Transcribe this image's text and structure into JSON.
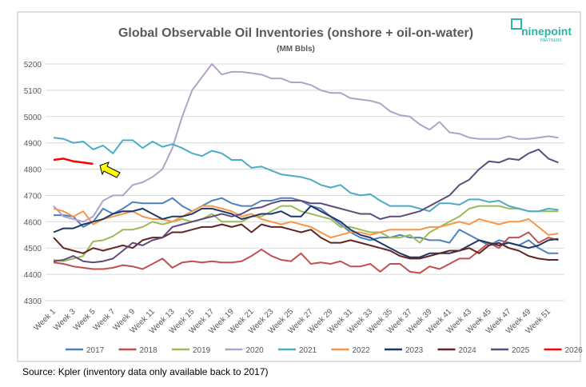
{
  "chart_data": {
    "type": "line",
    "title": "Global Observable Oil Inventories (onshore + oil-on-water)",
    "subtitle": "(MM Bbls)",
    "source": "Source: Kpler (inventory data only available back to 2017)",
    "logo": "ninepoint",
    "logo_sub": "PARTNERS",
    "categories": [
      "Week 1",
      null,
      "Week 3",
      null,
      "Week 5",
      null,
      "Week 7",
      null,
      "Week 9",
      null,
      "Week 11",
      null,
      "Week 13",
      null,
      "Week 15",
      null,
      "Week 17",
      null,
      "Week 19",
      null,
      "Week 21",
      null,
      "Week 23",
      null,
      "Week 25",
      null,
      "Week 27",
      null,
      "Week 29",
      null,
      "Week 31",
      null,
      "Week 33",
      null,
      "Week 35",
      null,
      "Week 37",
      null,
      "Week 39",
      null,
      "Week 41",
      null,
      "Week 43",
      null,
      "Week 45",
      null,
      "Week 47",
      null,
      "Week 49",
      null,
      "Week 51",
      null
    ],
    "ylim": [
      4300,
      5200
    ],
    "yticks": [
      4300,
      4400,
      4500,
      4600,
      4700,
      4800,
      4900,
      5000,
      5100,
      5200
    ],
    "grid": true,
    "legend": "bottom",
    "series": [
      {
        "name": "2017",
        "color": "#4f81bd",
        "values": [
          4625,
          4625,
          4620,
          4580,
          4600,
          4650,
          4630,
          4650,
          4675,
          4670,
          4670,
          4670,
          4690,
          4660,
          4640,
          4660,
          4680,
          4690,
          4670,
          4660,
          4660,
          4680,
          4680,
          4690,
          4690,
          4680,
          4660,
          4650,
          4620,
          4590,
          4560,
          4540,
          4530,
          4540,
          4540,
          4550,
          4540,
          4540,
          4530,
          4530,
          4520,
          4570,
          4550,
          4530,
          4510,
          4530,
          4520,
          4510,
          4530,
          4500,
          4480,
          4480
        ]
      },
      {
        "name": "2018",
        "color": "#c0504d",
        "values": [
          4445,
          4440,
          4430,
          4425,
          4420,
          4420,
          4425,
          4435,
          4430,
          4420,
          4440,
          4460,
          4425,
          4445,
          4450,
          4445,
          4450,
          4445,
          4445,
          4450,
          4470,
          4495,
          4470,
          4455,
          4450,
          4480,
          4440,
          4445,
          4440,
          4450,
          4430,
          4430,
          4440,
          4410,
          4440,
          4440,
          4410,
          4405,
          4430,
          4420,
          4440,
          4460,
          4460,
          4490,
          4520,
          4500,
          4540,
          4540,
          4560,
          4520,
          4540,
          4530
        ]
      },
      {
        "name": "2019",
        "color": "#9bbb59",
        "values": [
          4455,
          4450,
          4460,
          4470,
          4525,
          4530,
          4545,
          4570,
          4570,
          4580,
          4600,
          4590,
          4600,
          4610,
          4600,
          4610,
          4630,
          4600,
          4600,
          4600,
          4620,
          4620,
          4640,
          4660,
          4660,
          4640,
          4630,
          4620,
          4610,
          4580,
          4580,
          4570,
          4560,
          4560,
          4540,
          4540,
          4550,
          4520,
          4560,
          4580,
          4600,
          4620,
          4650,
          4660,
          4660,
          4660,
          4650,
          4650,
          4640,
          4640,
          4640,
          4640
        ]
      },
      {
        "name": "2020",
        "color": "#b3a2c7",
        "values": [
          4660,
          4620,
          4610,
          4600,
          4620,
          4680,
          4700,
          4700,
          4740,
          4750,
          4770,
          4800,
          4880,
          5000,
          5100,
          5150,
          5200,
          5160,
          5170,
          5170,
          5165,
          5160,
          5145,
          5145,
          5130,
          5130,
          5120,
          5100,
          5090,
          5090,
          5070,
          5065,
          5060,
          5050,
          5020,
          5005,
          5000,
          4970,
          4950,
          4980,
          4940,
          4935,
          4920,
          4915,
          4915,
          4915,
          4925,
          4915,
          4915,
          4920,
          4925,
          4920
        ]
      },
      {
        "name": "2021",
        "color": "#4bacc6",
        "values": [
          4920,
          4915,
          4900,
          4905,
          4875,
          4890,
          4860,
          4910,
          4910,
          4880,
          4905,
          4885,
          4895,
          4880,
          4860,
          4850,
          4870,
          4860,
          4835,
          4835,
          4805,
          4810,
          4795,
          4780,
          4775,
          4770,
          4760,
          4740,
          4730,
          4740,
          4710,
          4700,
          4705,
          4680,
          4660,
          4660,
          4660,
          4650,
          4640,
          4670,
          4670,
          4665,
          4685,
          4685,
          4675,
          4680,
          4660,
          4650,
          4640,
          4640,
          4650,
          4645
        ]
      },
      {
        "name": "2022",
        "color": "#f79646",
        "values": [
          4650,
          4640,
          4620,
          4640,
          4590,
          4610,
          4620,
          4630,
          4640,
          4620,
          4610,
          4610,
          4600,
          4620,
          4640,
          4660,
          4660,
          4650,
          4640,
          4620,
          4630,
          4610,
          4600,
          4590,
          4600,
          4590,
          4580,
          4560,
          4540,
          4550,
          4560,
          4560,
          4550,
          4560,
          4570,
          4570,
          4570,
          4570,
          4580,
          4580,
          4590,
          4600,
          4590,
          4610,
          4600,
          4590,
          4600,
          4600,
          4610,
          4580,
          4550,
          4555
        ]
      },
      {
        "name": "2023",
        "color": "#1f3864",
        "values": [
          4560,
          4575,
          4575,
          4590,
          4600,
          4610,
          4630,
          4640,
          4640,
          4650,
          4630,
          4610,
          4620,
          4620,
          4630,
          4650,
          4650,
          4640,
          4630,
          4610,
          4620,
          4630,
          4630,
          4640,
          4620,
          4620,
          4660,
          4640,
          4620,
          4600,
          4570,
          4550,
          4540,
          4520,
          4500,
          4480,
          4465,
          4465,
          4480,
          4480,
          4480,
          4490,
          4510,
          4530,
          4520,
          4510,
          4520,
          4510,
          4500,
          4510,
          4530,
          4535
        ]
      },
      {
        "name": "2024",
        "color": "#632523",
        "values": [
          4540,
          4500,
          4490,
          4480,
          4500,
          4490,
          4500,
          4510,
          4500,
          4530,
          4540,
          4540,
          4560,
          4560,
          4570,
          4580,
          4580,
          4590,
          4580,
          4590,
          4560,
          4590,
          4580,
          4580,
          4570,
          4560,
          4570,
          4540,
          4520,
          4520,
          4530,
          4520,
          4510,
          4500,
          4490,
          4470,
          4460,
          4460,
          4470,
          4480,
          4490,
          4490,
          4500,
          4480,
          4510,
          4520,
          4500,
          4490,
          4470,
          4460,
          4455,
          4455
        ]
      },
      {
        "name": "2025",
        "color": "#604a7b",
        "values": [
          4450,
          4455,
          4470,
          4450,
          4445,
          4450,
          4460,
          4490,
          4520,
          4510,
          4530,
          4540,
          4580,
          4590,
          4600,
          4610,
          4620,
          4630,
          4620,
          4630,
          4650,
          4655,
          4670,
          4680,
          4680,
          4680,
          4670,
          4670,
          4660,
          4650,
          4640,
          4630,
          4630,
          4610,
          4620,
          4620,
          4630,
          4640,
          4660,
          4680,
          4700,
          4740,
          4760,
          4800,
          4830,
          4825,
          4840,
          4835,
          4860,
          4875,
          4840,
          4825
        ]
      },
      {
        "name": "2026",
        "color": "#ff0000",
        "values": [
          4835,
          4840,
          4830,
          4825,
          4820,
          null,
          null,
          null,
          null,
          null,
          null,
          null,
          null,
          null,
          null,
          null,
          null,
          null,
          null,
          null,
          null,
          null,
          null,
          null,
          null,
          null,
          null,
          null,
          null,
          null,
          null,
          null,
          null,
          null,
          null,
          null,
          null,
          null,
          null,
          null,
          null,
          null,
          null,
          null,
          null,
          null,
          null,
          null,
          null,
          null,
          null,
          null
        ]
      }
    ]
  }
}
